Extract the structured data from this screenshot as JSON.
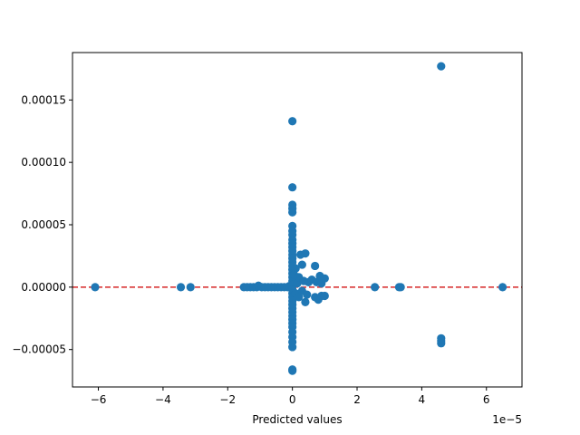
{
  "chart_data": {
    "type": "scatter",
    "title": "",
    "xlabel": "Predicted values",
    "ylabel": "",
    "x_offset_label": "1e−5",
    "xlim": [
      -6.8,
      7.1
    ],
    "ylim": [
      -8e-05,
      0.000188
    ],
    "x_ticks": [
      -6,
      -4,
      -2,
      0,
      2,
      4,
      6
    ],
    "x_tick_labels": [
      "−6",
      "−4",
      "−2",
      "0",
      "2",
      "4",
      "6"
    ],
    "y_ticks": [
      -5e-05,
      0,
      5e-05,
      0.0001,
      0.00015
    ],
    "y_tick_labels": [
      "−0.00005",
      "0.00000",
      "0.00005",
      "0.00010",
      "0.00015"
    ],
    "grid": false,
    "reference_line": {
      "y": 0,
      "style": "dashed",
      "color": "#d62728"
    },
    "marker_color": "#1f77b4",
    "points": [
      [
        -6.1,
        0
      ],
      [
        -3.45,
        0
      ],
      [
        -3.15,
        0
      ],
      [
        -1.5,
        0
      ],
      [
        -1.4,
        0
      ],
      [
        -1.3,
        0
      ],
      [
        -1.2,
        0
      ],
      [
        -1.1,
        0
      ],
      [
        -1.05,
        1.2e-06
      ],
      [
        -0.95,
        0
      ],
      [
        -0.85,
        0
      ],
      [
        -0.75,
        0
      ],
      [
        -0.65,
        0
      ],
      [
        -0.55,
        0
      ],
      [
        -0.45,
        0
      ],
      [
        -0.35,
        0
      ],
      [
        -0.25,
        0
      ],
      [
        -0.15,
        0
      ],
      [
        -0.1,
        8e-07
      ],
      [
        0,
        0.000133
      ],
      [
        0,
        8e-05
      ],
      [
        0,
        6.6e-05
      ],
      [
        0,
        6.3e-05
      ],
      [
        0,
        6e-05
      ],
      [
        0,
        4.9e-05
      ],
      [
        0,
        4.5e-05
      ],
      [
        0,
        4.2e-05
      ],
      [
        0,
        3.8e-05
      ],
      [
        0,
        3.5e-05
      ],
      [
        0,
        3.2e-05
      ],
      [
        0,
        2.9e-05
      ],
      [
        0,
        2.6e-05
      ],
      [
        0,
        2.3e-05
      ],
      [
        0,
        2e-05
      ],
      [
        0,
        1.7e-05
      ],
      [
        0,
        1.4e-05
      ],
      [
        0,
        1.1e-05
      ],
      [
        0,
        8e-06
      ],
      [
        0,
        5e-06
      ],
      [
        0,
        2e-06
      ],
      [
        0,
        -2e-06
      ],
      [
        0,
        -5e-06
      ],
      [
        0,
        -8e-06
      ],
      [
        0,
        -1.1e-05
      ],
      [
        0,
        -1.4e-05
      ],
      [
        0,
        -1.7e-05
      ],
      [
        0,
        -2e-05
      ],
      [
        0,
        -2.3e-05
      ],
      [
        0,
        -2.6e-05
      ],
      [
        0,
        -2.9e-05
      ],
      [
        0,
        -3.2e-05
      ],
      [
        0,
        -3.6e-05
      ],
      [
        0,
        -4e-05
      ],
      [
        0,
        -4.4e-05
      ],
      [
        0,
        -4.8e-05
      ],
      [
        0,
        -6.6e-05
      ],
      [
        0,
        -6.7e-05
      ],
      [
        0.05,
        1e-05
      ],
      [
        0.1,
        1.5e-05
      ],
      [
        0.1,
        -5e-06
      ],
      [
        0.15,
        3e-06
      ],
      [
        0.2,
        -8e-06
      ],
      [
        0.2,
        8e-06
      ],
      [
        0.25,
        2.6e-05
      ],
      [
        0.3,
        1.8e-05
      ],
      [
        0.3,
        -3e-06
      ],
      [
        0.35,
        5e-06
      ],
      [
        0.4,
        2.7e-05
      ],
      [
        0.4,
        -1.2e-05
      ],
      [
        0.45,
        -6e-06
      ],
      [
        0.5,
        4e-06
      ],
      [
        0.6,
        6e-06
      ],
      [
        0.7,
        1.7e-05
      ],
      [
        0.7,
        -8e-06
      ],
      [
        0.75,
        4e-06
      ],
      [
        0.8,
        -1e-05
      ],
      [
        0.85,
        9e-06
      ],
      [
        0.9,
        3e-06
      ],
      [
        0.9,
        -7e-06
      ],
      [
        1.0,
        7e-06
      ],
      [
        1.0,
        -7e-06
      ],
      [
        2.55,
        0
      ],
      [
        3.3,
        0
      ],
      [
        3.35,
        0
      ],
      [
        4.6,
        0.000177
      ],
      [
        4.6,
        -4.1e-05
      ],
      [
        4.6,
        -4.3e-05
      ],
      [
        4.6,
        -4.5e-05
      ],
      [
        6.5,
        0
      ]
    ]
  }
}
